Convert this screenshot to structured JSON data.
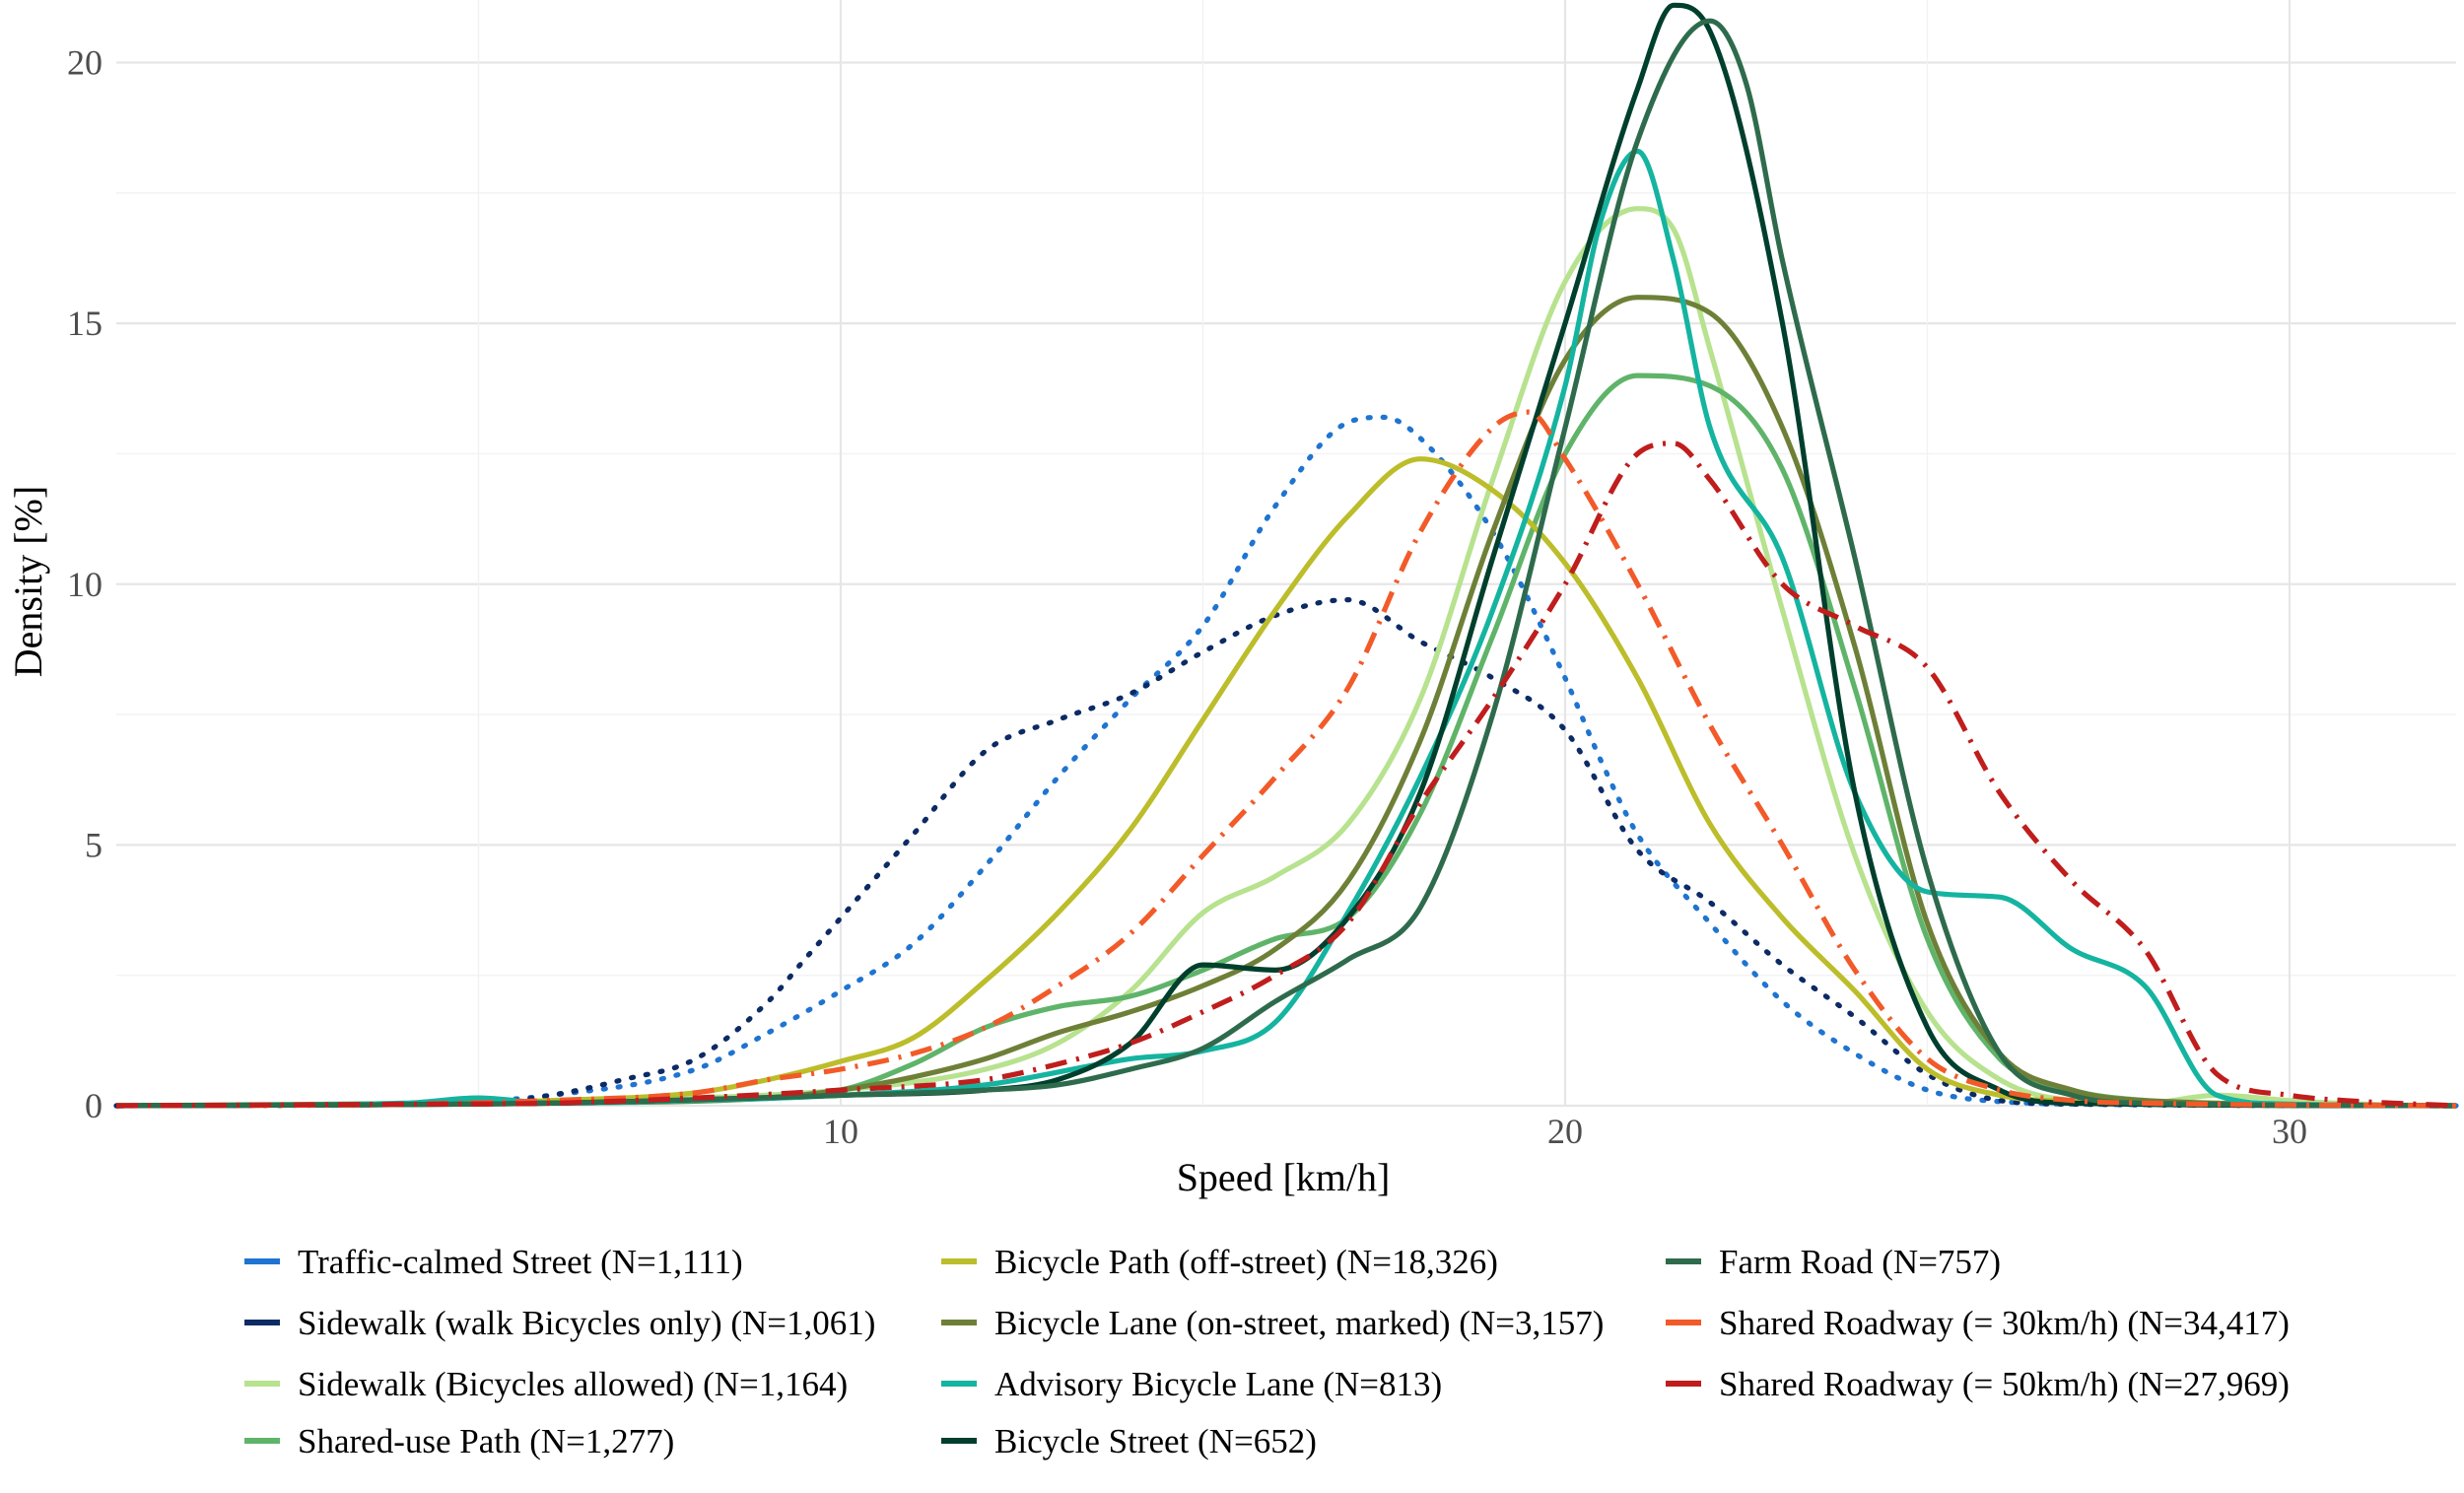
{
  "chart_data": {
    "type": "line",
    "title": "",
    "xlabel": "Speed [km/h]",
    "ylabel": "Density [%]",
    "xlim": [
      0,
      32.3
    ],
    "ylim": [
      0,
      21.2
    ],
    "xticks": [
      10,
      20,
      30
    ],
    "yticks": [
      0,
      5,
      10,
      15,
      20
    ],
    "grid": true,
    "legend_position": "bottom",
    "series": [
      {
        "name": "Traffic-calmed Street (N=1,111)",
        "color": "#1e74d0",
        "dash": "dotted",
        "points": [
          [
            0,
            0
          ],
          [
            4,
            0.03
          ],
          [
            6,
            0.2
          ],
          [
            8,
            0.7
          ],
          [
            9,
            1.4
          ],
          [
            10,
            2.2
          ],
          [
            11,
            3.1
          ],
          [
            12,
            4.6
          ],
          [
            13,
            6.3
          ],
          [
            14,
            7.8
          ],
          [
            15,
            9.2
          ],
          [
            16,
            11.5
          ],
          [
            17,
            13.1
          ],
          [
            17.5,
            13.2
          ],
          [
            18,
            12.8
          ],
          [
            19,
            11.0
          ],
          [
            20,
            8.2
          ],
          [
            20.5,
            6.6
          ],
          [
            21,
            5.2
          ],
          [
            22,
            3.5
          ],
          [
            23,
            2.0
          ],
          [
            24,
            1.0
          ],
          [
            25,
            0.3
          ],
          [
            26,
            0.08
          ],
          [
            28,
            0.02
          ],
          [
            32.3,
            0
          ]
        ]
      },
      {
        "name": "Sidewalk (walk Bicycles only) (N=1,061)",
        "color": "#0c2a64",
        "dash": "dotted",
        "points": [
          [
            0,
            0
          ],
          [
            5,
            0.05
          ],
          [
            6,
            0.2
          ],
          [
            7,
            0.5
          ],
          [
            8,
            0.9
          ],
          [
            9,
            2.0
          ],
          [
            9.5,
            2.8
          ],
          [
            10,
            3.6
          ],
          [
            11,
            5.2
          ],
          [
            12,
            6.8
          ],
          [
            13,
            7.4
          ],
          [
            14,
            7.9
          ],
          [
            15,
            8.7
          ],
          [
            16,
            9.4
          ],
          [
            17,
            9.7
          ],
          [
            18,
            8.9
          ],
          [
            19,
            8.2
          ],
          [
            20,
            7.2
          ],
          [
            21,
            4.9
          ],
          [
            22,
            3.9
          ],
          [
            23,
            2.7
          ],
          [
            24,
            1.7
          ],
          [
            25,
            0.6
          ],
          [
            26,
            0.1
          ],
          [
            27,
            0.03
          ],
          [
            32.3,
            0
          ]
        ]
      },
      {
        "name": "Sidewalk (Bicycles allowed) (N=1,164)",
        "color": "#b7e28e",
        "dash": "solid",
        "points": [
          [
            0,
            0
          ],
          [
            5,
            0.05
          ],
          [
            8,
            0.15
          ],
          [
            10,
            0.3
          ],
          [
            12,
            0.7
          ],
          [
            13,
            1.2
          ],
          [
            14,
            2.2
          ],
          [
            15,
            3.7
          ],
          [
            16,
            4.4
          ],
          [
            17,
            5.4
          ],
          [
            18,
            7.8
          ],
          [
            19,
            12.0
          ],
          [
            20,
            15.8
          ],
          [
            21,
            17.2
          ],
          [
            21.5,
            16.8
          ],
          [
            22,
            14.5
          ],
          [
            23,
            9.5
          ],
          [
            24,
            4.8
          ],
          [
            25,
            1.8
          ],
          [
            26,
            0.5
          ],
          [
            27,
            0.1
          ],
          [
            28,
            0.05
          ],
          [
            29,
            0.2
          ],
          [
            30,
            0.1
          ],
          [
            31,
            0.03
          ],
          [
            32.3,
            0
          ]
        ]
      },
      {
        "name": "Shared-use Path (N=1,277)",
        "color": "#5fb46a",
        "dash": "solid",
        "points": [
          [
            0,
            0
          ],
          [
            5,
            0.05
          ],
          [
            8,
            0.1
          ],
          [
            10,
            0.3
          ],
          [
            11,
            0.8
          ],
          [
            12,
            1.5
          ],
          [
            13,
            1.9
          ],
          [
            14,
            2.1
          ],
          [
            15,
            2.6
          ],
          [
            16,
            3.2
          ],
          [
            17,
            3.6
          ],
          [
            18,
            5.6
          ],
          [
            19,
            9.0
          ],
          [
            20,
            12.5
          ],
          [
            21,
            14.0
          ],
          [
            22,
            13.8
          ],
          [
            23,
            12.2
          ],
          [
            24,
            8.0
          ],
          [
            25,
            3.2
          ],
          [
            26,
            0.9
          ],
          [
            27,
            0.3
          ],
          [
            28,
            0.1
          ],
          [
            30,
            0.02
          ],
          [
            32.3,
            0
          ]
        ]
      },
      {
        "name": "Bicycle Path (off-street) (N=18,326)",
        "color": "#bcbd2a",
        "dash": "solid",
        "points": [
          [
            0,
            0
          ],
          [
            4,
            0.03
          ],
          [
            6,
            0.1
          ],
          [
            8,
            0.25
          ],
          [
            9,
            0.5
          ],
          [
            10,
            0.85
          ],
          [
            11,
            1.3
          ],
          [
            12,
            2.4
          ],
          [
            13,
            3.7
          ],
          [
            14,
            5.3
          ],
          [
            15,
            7.4
          ],
          [
            16,
            9.5
          ],
          [
            17,
            11.3
          ],
          [
            18,
            12.4
          ],
          [
            19,
            11.8
          ],
          [
            20,
            10.4
          ],
          [
            21,
            8.2
          ],
          [
            22,
            5.4
          ],
          [
            23,
            3.6
          ],
          [
            24,
            2.2
          ],
          [
            25,
            0.7
          ],
          [
            26,
            0.2
          ],
          [
            27,
            0.08
          ],
          [
            28,
            0.03
          ],
          [
            32.3,
            0
          ]
        ]
      },
      {
        "name": "Bicycle Lane (on-street, marked) (N=3,157)",
        "color": "#6e8037",
        "dash": "solid",
        "points": [
          [
            0,
            0
          ],
          [
            6,
            0.05
          ],
          [
            9,
            0.15
          ],
          [
            10,
            0.3
          ],
          [
            11,
            0.55
          ],
          [
            12,
            0.9
          ],
          [
            13,
            1.4
          ],
          [
            14,
            1.8
          ],
          [
            15,
            2.3
          ],
          [
            16,
            3.0
          ],
          [
            17,
            4.3
          ],
          [
            18,
            7.0
          ],
          [
            19,
            11.0
          ],
          [
            20,
            14.3
          ],
          [
            21,
            15.5
          ],
          [
            22,
            15.2
          ],
          [
            23,
            13.0
          ],
          [
            24,
            8.8
          ],
          [
            25,
            3.5
          ],
          [
            26,
            1.0
          ],
          [
            27,
            0.3
          ],
          [
            28,
            0.1
          ],
          [
            32.3,
            0
          ]
        ]
      },
      {
        "name": "Advisory Bicycle Lane (N=813)",
        "color": "#14b4a0",
        "dash": "solid",
        "points": [
          [
            0,
            0
          ],
          [
            4,
            0.05
          ],
          [
            5,
            0.15
          ],
          [
            6,
            0.05
          ],
          [
            8,
            0.1
          ],
          [
            10,
            0.2
          ],
          [
            12,
            0.4
          ],
          [
            14,
            0.9
          ],
          [
            15,
            1.05
          ],
          [
            16,
            1.6
          ],
          [
            17,
            3.7
          ],
          [
            18,
            6.3
          ],
          [
            19,
            9.5
          ],
          [
            20,
            13.8
          ],
          [
            20.5,
            17.0
          ],
          [
            21,
            18.3
          ],
          [
            21.5,
            16.2
          ],
          [
            22,
            13.0
          ],
          [
            23,
            10.5
          ],
          [
            24,
            6.0
          ],
          [
            25,
            4.1
          ],
          [
            26,
            4.0
          ],
          [
            27,
            3.0
          ],
          [
            28,
            2.3
          ],
          [
            29,
            0.2
          ],
          [
            30,
            0.03
          ],
          [
            32.3,
            0
          ]
        ]
      },
      {
        "name": "Bicycle Street (N=652)",
        "color": "#003f2d",
        "dash": "solid",
        "points": [
          [
            0,
            0
          ],
          [
            6,
            0.05
          ],
          [
            10,
            0.2
          ],
          [
            12,
            0.3
          ],
          [
            13,
            0.5
          ],
          [
            14,
            1.2
          ],
          [
            15,
            2.7
          ],
          [
            16,
            2.6
          ],
          [
            17,
            3.6
          ],
          [
            18,
            6.0
          ],
          [
            19,
            10.5
          ],
          [
            20,
            15.0
          ],
          [
            21,
            19.5
          ],
          [
            21.5,
            21.1
          ],
          [
            22,
            20.6
          ],
          [
            23,
            15.0
          ],
          [
            24,
            6.0
          ],
          [
            25,
            1.5
          ],
          [
            26,
            0.3
          ],
          [
            27,
            0.05
          ],
          [
            32.3,
            0
          ]
        ]
      },
      {
        "name": "Farm Road (N=757)",
        "color": "#2e6b4d",
        "dash": "solid",
        "points": [
          [
            0,
            0
          ],
          [
            6,
            0.05
          ],
          [
            10,
            0.2
          ],
          [
            12,
            0.3
          ],
          [
            13,
            0.4
          ],
          [
            14,
            0.7
          ],
          [
            15,
            1.1
          ],
          [
            16,
            2.0
          ],
          [
            17,
            2.8
          ],
          [
            18,
            3.8
          ],
          [
            19,
            7.5
          ],
          [
            20,
            13.0
          ],
          [
            21,
            18.5
          ],
          [
            22,
            20.8
          ],
          [
            22.5,
            19.6
          ],
          [
            23,
            16.2
          ],
          [
            24,
            10.5
          ],
          [
            25,
            4.5
          ],
          [
            26,
            1.0
          ],
          [
            27,
            0.2
          ],
          [
            28,
            0.05
          ],
          [
            32.3,
            0
          ]
        ]
      },
      {
        "name": "Shared Roadway (= 30km/h) (N=34,417)",
        "color": "#f25a29",
        "dash": "dashdot",
        "points": [
          [
            0,
            0
          ],
          [
            4,
            0.03
          ],
          [
            6,
            0.1
          ],
          [
            8,
            0.25
          ],
          [
            9,
            0.5
          ],
          [
            10,
            0.7
          ],
          [
            11,
            1.0
          ],
          [
            12,
            1.5
          ],
          [
            13,
            2.3
          ],
          [
            14,
            3.3
          ],
          [
            15,
            4.8
          ],
          [
            16,
            6.3
          ],
          [
            17,
            8.0
          ],
          [
            18,
            11.0
          ],
          [
            19,
            13.0
          ],
          [
            19.5,
            13.3
          ],
          [
            20,
            12.4
          ],
          [
            21,
            10.0
          ],
          [
            22,
            7.3
          ],
          [
            23,
            5.0
          ],
          [
            24,
            2.6
          ],
          [
            25,
            0.9
          ],
          [
            26,
            0.3
          ],
          [
            27,
            0.1
          ],
          [
            28,
            0.05
          ],
          [
            32.3,
            0
          ]
        ]
      },
      {
        "name": "Shared Roadway (= 50km/h) (N=27,969)",
        "color": "#c01d1d",
        "dash": "dashdot",
        "points": [
          [
            0,
            0
          ],
          [
            4,
            0.03
          ],
          [
            6,
            0.05
          ],
          [
            8,
            0.15
          ],
          [
            10,
            0.3
          ],
          [
            12,
            0.5
          ],
          [
            13,
            0.8
          ],
          [
            14,
            1.2
          ],
          [
            15,
            1.8
          ],
          [
            16,
            2.5
          ],
          [
            17,
            3.5
          ],
          [
            18,
            5.8
          ],
          [
            19,
            7.8
          ],
          [
            20,
            10.0
          ],
          [
            21,
            12.5
          ],
          [
            21.5,
            12.7
          ],
          [
            22,
            12.0
          ],
          [
            23,
            10.0
          ],
          [
            24,
            9.2
          ],
          [
            25,
            8.4
          ],
          [
            26,
            6.0
          ],
          [
            27,
            4.3
          ],
          [
            28,
            3.0
          ],
          [
            29,
            0.6
          ],
          [
            30,
            0.2
          ],
          [
            31,
            0.08
          ],
          [
            32.3,
            0
          ]
        ]
      }
    ]
  }
}
